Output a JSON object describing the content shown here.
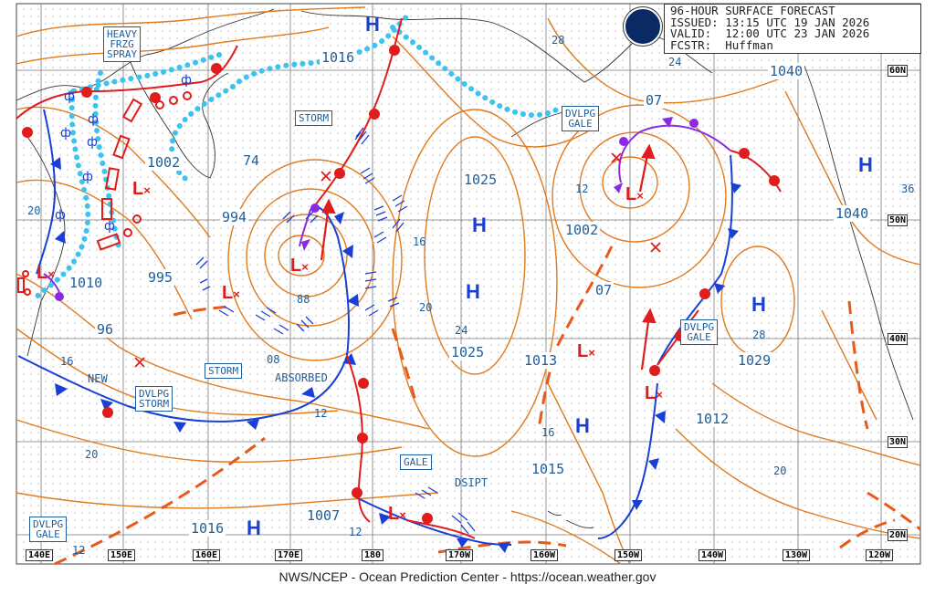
{
  "header": {
    "title": "96-HOUR SURFACE FORECAST",
    "issued": "ISSUED: 13:15 UTC 19 JAN 2026",
    "valid": "VALID:  12:00 UTC 23 JAN 2026",
    "forecaster": "FCSTR:  Huffman"
  },
  "footer": "NWS/NCEP - Ocean Prediction Center - https://ocean.weather.gov",
  "latitudes": [
    "60N",
    "50N",
    "40N",
    "30N",
    "20N"
  ],
  "longitudes": [
    "140E",
    "150E",
    "160E",
    "170E",
    "180",
    "170W",
    "160W",
    "150W",
    "140W",
    "130W",
    "120W"
  ],
  "warnings": {
    "heavy_frzg_spray": [
      "HEAVY",
      "FRZG",
      "SPRAY"
    ],
    "storm_1": "STORM",
    "storm_2": "STORM",
    "dvlpg_storm": [
      "DVLPG",
      "STORM"
    ],
    "dvlpg_gale_1": [
      "DVLPG",
      "GALE"
    ],
    "dvlpg_gale_2": [
      "DVLPG",
      "GALE"
    ],
    "dvlpg_gale_3": [
      "DVLPG",
      "GALE"
    ],
    "gale": "GALE"
  },
  "labels": {
    "new": "NEW",
    "absorbed": "ABSORBED",
    "dsipt": "DSIPT"
  },
  "pressure_centers": {
    "highs": [
      "H",
      "H",
      "H",
      "H",
      "H",
      "H",
      "H"
    ],
    "lows": [
      "L",
      "L",
      "L",
      "L",
      "L",
      "L",
      "L"
    ]
  },
  "isobars": {
    "p1016": "1016",
    "p1002a": "1002",
    "p74": "74",
    "p994": "994",
    "p995": "995",
    "p1010": "1010",
    "p96": "96",
    "p1025a": "1025",
    "p1025b": "1025",
    "p1002b": "1002",
    "p07a": "07",
    "p07b": "07",
    "p1040a": "1040",
    "p1040b": "1040",
    "p1013": "1013",
    "p1029": "1029",
    "p1012": "1012",
    "p1015": "1015",
    "p1007": "1007",
    "p1016b": "1016"
  },
  "small_isobars": {
    "s28a": "28",
    "s24a": "24",
    "s20a": "20",
    "s12a": "12",
    "s16a": "16",
    "s20b": "20",
    "s88": "88",
    "s08": "08",
    "s16b": "16",
    "s12b": "12",
    "s20c": "20",
    "s24b": "24",
    "s16c": "16",
    "s28b": "28",
    "s20d": "20",
    "s36": "36",
    "s12c": "12",
    "s12d": "12"
  },
  "colors": {
    "isobar": "#e07b1e",
    "cold_front": "#1a3fd6",
    "warm_front": "#e01c1c",
    "occluded_front": "#8a2be2",
    "ice_edge": "#3cc3ee",
    "text": "#1f5d9a"
  }
}
